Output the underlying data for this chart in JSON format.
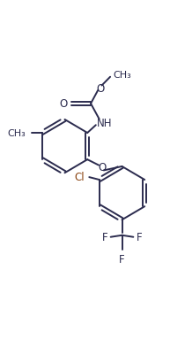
{
  "bg_color": "#ffffff",
  "line_color": "#2b2b4e",
  "cl_color": "#8B4513",
  "line_width": 1.4,
  "font_size": 8.5,
  "xlim": [
    0,
    10
  ],
  "ylim": [
    0,
    21
  ]
}
